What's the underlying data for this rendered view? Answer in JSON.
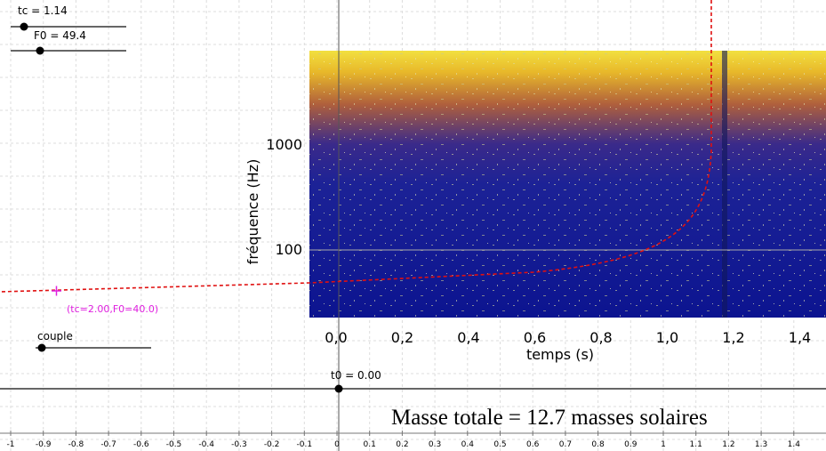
{
  "sliders": {
    "tc": "tc = 1.14",
    "f0": "F0 = 49.4",
    "couple": "couple",
    "t0": "t0 = 0.00"
  },
  "point_label": "(tc=2.00,F0=40.0)",
  "spectrogram": {
    "y_axis_label": "fréquence (Hz)",
    "x_axis_label": "temps (s)",
    "yticks": [
      "1000",
      "100"
    ],
    "xticks": [
      "0,0",
      "0,2",
      "0,4",
      "0,6",
      "0,8",
      "1,0",
      "1,2",
      "1,4"
    ]
  },
  "bottom_axis_ticks": [
    "-1",
    "-0.9",
    "-0.8",
    "-0.7",
    "-0.6",
    "-0.5",
    "-0.4",
    "-0.3",
    "-0.2",
    "-0.1",
    "0",
    "0.1",
    "0.2",
    "0.3",
    "0.4",
    "0.5",
    "0.6",
    "0.7",
    "0.8",
    "0.9",
    "1",
    "1.1",
    "1.2",
    "1.3",
    "1.4"
  ],
  "caption": "Masse totale = 12.7 masses solaires"
}
